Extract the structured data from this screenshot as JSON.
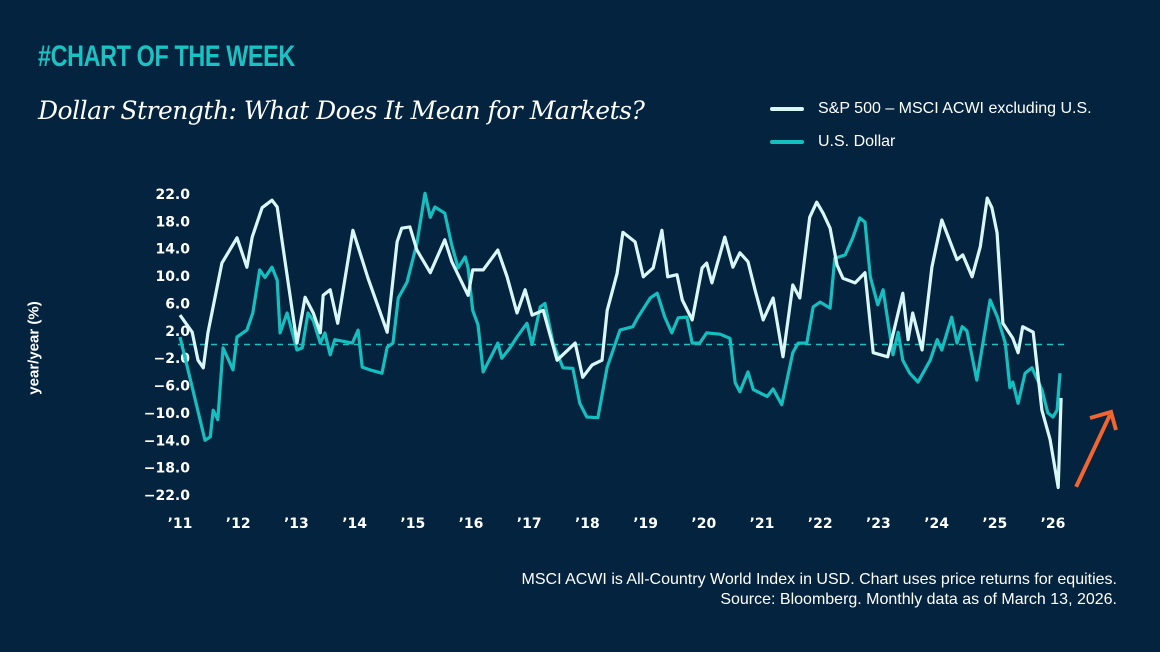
{
  "header": {
    "kicker": "#CHART OF THE WEEK",
    "title": "Dollar Strength: What Does It Mean for Markets?"
  },
  "footnote": {
    "line1": "MSCI ACWI is All-Country World Index in USD. Chart uses price returns for equities.",
    "line2": "Source: Bloomberg. Monthly data as of March 13, 2026."
  },
  "colors": {
    "background": "#03233f",
    "kicker": "#19c3c3",
    "spread_line": "#d9f7f7",
    "dollar_line": "#14bfc0",
    "zero_line": "#19c3c3",
    "arrow": "#f26430"
  },
  "annotation": {
    "icon": "arrow-up-right-icon"
  },
  "chart_data": {
    "type": "line",
    "title": "Dollar Strength: What Does It Mean for Markets?",
    "ylabel": "year/year (%)",
    "xlabel": "",
    "xlim": [
      2011,
      2026.2
    ],
    "ylim": [
      -22,
      22
    ],
    "y_ticks": [
      "22.0",
      "18.0",
      "14.0",
      "10.0",
      "6.0",
      "2.0",
      "−2.0",
      "−6.0",
      "−10.0",
      "−14.0",
      "−18.0",
      "−22.0"
    ],
    "y_tick_values": [
      22,
      18,
      14,
      10,
      6,
      2,
      -2,
      -6,
      -10,
      -14,
      -18,
      -22
    ],
    "x_ticks": [
      "’11",
      "’12",
      "’13",
      "’14",
      "’15",
      "’16",
      "’17",
      "’18",
      "’19",
      "’20",
      "’21",
      "’22",
      "’23",
      "’24",
      "’25",
      "’26"
    ],
    "x_tick_values": [
      2011,
      2012,
      2013,
      2014,
      2015,
      2016,
      2017,
      2018,
      2019,
      2020,
      2021,
      2022,
      2023,
      2024,
      2025,
      2026
    ],
    "reference_line": 0,
    "grid": false,
    "legend_position": "top-right",
    "series": [
      {
        "name": "S&P 500 – MSCI ACWI excluding U.S.",
        "x": [
          2011.0,
          2011.21,
          2011.31,
          2011.4,
          2011.48,
          2011.72,
          2011.98,
          2012.15,
          2012.24,
          2012.41,
          2012.58,
          2012.67,
          2012.8,
          2012.92,
          2013.01,
          2013.15,
          2013.29,
          2013.41,
          2013.46,
          2013.58,
          2013.71,
          2013.97,
          2014.23,
          2014.56,
          2014.73,
          2014.81,
          2014.95,
          2015.07,
          2015.3,
          2015.55,
          2015.67,
          2015.95,
          2016.03,
          2016.21,
          2016.46,
          2016.62,
          2016.79,
          2016.93,
          2017.05,
          2017.24,
          2017.48,
          2017.79,
          2017.92,
          2018.08,
          2018.25,
          2018.34,
          2018.51,
          2018.61,
          2018.82,
          2018.96,
          2019.13,
          2019.28,
          2019.38,
          2019.54,
          2019.63,
          2019.8,
          2019.97,
          2020.05,
          2020.14,
          2020.36,
          2020.5,
          2020.62,
          2020.76,
          2020.88,
          2021.02,
          2021.19,
          2021.36,
          2021.53,
          2021.65,
          2021.82,
          2021.94,
          2022.05,
          2022.17,
          2022.29,
          2022.39,
          2022.6,
          2022.77,
          2022.91,
          2023.16,
          2023.42,
          2023.51,
          2023.59,
          2023.75,
          2023.92,
          2024.09,
          2024.35,
          2024.45,
          2024.61,
          2024.75,
          2024.87,
          2024.95,
          2025.04,
          2025.14,
          2025.31,
          2025.4,
          2025.48,
          2025.66,
          2025.81,
          2025.95,
          2026.09,
          2026.14
        ],
        "values": [
          4.3,
          1.8,
          -2.3,
          -3.4,
          1.7,
          11.9,
          15.6,
          11.3,
          15.7,
          20.0,
          21.1,
          20.1,
          12.4,
          5.5,
          0.2,
          6.9,
          4.6,
          1.7,
          7.2,
          8.0,
          3.1,
          16.7,
          9.7,
          1.8,
          15.0,
          17.0,
          17.2,
          13.8,
          10.5,
          15.3,
          12.1,
          7.2,
          10.9,
          10.9,
          13.8,
          9.9,
          4.6,
          8.0,
          4.3,
          5.0,
          -2.3,
          0.2,
          -4.8,
          -3.0,
          -2.3,
          5.0,
          10.4,
          16.4,
          15.0,
          9.9,
          11.2,
          16.7,
          9.9,
          10.2,
          6.5,
          3.6,
          11.2,
          11.9,
          9.0,
          15.7,
          11.3,
          13.4,
          12.1,
          8.0,
          3.6,
          6.8,
          -1.8,
          8.7,
          6.8,
          18.6,
          20.8,
          19.2,
          17.0,
          11.6,
          9.7,
          9.0,
          10.5,
          -1.2,
          -1.8,
          7.5,
          0.7,
          4.6,
          -0.8,
          11.3,
          18.2,
          12.4,
          13.1,
          9.9,
          14.3,
          21.4,
          20.0,
          16.3,
          3.1,
          0.9,
          -1.2,
          2.6,
          1.8,
          -9.6,
          -13.9,
          -20.9,
          -7.8
        ]
      },
      {
        "name": "U.S. Dollar",
        "x": [
          2011.0,
          2011.22,
          2011.43,
          2011.52,
          2011.57,
          2011.65,
          2011.74,
          2011.91,
          2011.98,
          2012.15,
          2012.25,
          2012.37,
          2012.46,
          2012.58,
          2012.67,
          2012.72,
          2012.84,
          2013.01,
          2013.1,
          2013.2,
          2013.29,
          2013.41,
          2013.49,
          2013.58,
          2013.66,
          2013.96,
          2014.06,
          2014.13,
          2014.26,
          2014.47,
          2014.56,
          2014.66,
          2014.75,
          2014.9,
          2015.07,
          2015.21,
          2015.3,
          2015.38,
          2015.55,
          2015.67,
          2015.78,
          2015.9,
          2015.95,
          2016.03,
          2016.12,
          2016.21,
          2016.38,
          2016.46,
          2016.53,
          2016.67,
          2016.79,
          2016.96,
          2017.05,
          2017.19,
          2017.27,
          2017.41,
          2017.58,
          2017.75,
          2017.87,
          2017.99,
          2018.18,
          2018.34,
          2018.56,
          2018.78,
          2018.87,
          2019.08,
          2019.2,
          2019.33,
          2019.45,
          2019.56,
          2019.71,
          2019.8,
          2019.93,
          2020.05,
          2020.28,
          2020.45,
          2020.54,
          2020.62,
          2020.76,
          2020.85,
          2021.09,
          2021.19,
          2021.34,
          2021.53,
          2021.62,
          2021.77,
          2021.88,
          2022.0,
          2022.17,
          2022.25,
          2022.43,
          2022.56,
          2022.68,
          2022.77,
          2022.86,
          2022.99,
          2023.08,
          2023.25,
          2023.34,
          2023.42,
          2023.54,
          2023.68,
          2023.89,
          2024.01,
          2024.09,
          2024.26,
          2024.35,
          2024.44,
          2024.52,
          2024.69,
          2024.92,
          2025.05,
          2025.18,
          2025.26,
          2025.31,
          2025.4,
          2025.52,
          2025.64,
          2025.81,
          2025.91,
          2026.0,
          2026.07,
          2026.12
        ],
        "values": [
          1.1,
          -6.6,
          -14.0,
          -13.5,
          -9.6,
          -11.0,
          -0.5,
          -3.7,
          1.1,
          2.1,
          4.6,
          10.9,
          9.8,
          11.3,
          9.4,
          1.7,
          4.6,
          -0.8,
          -0.5,
          4.6,
          3.5,
          0.2,
          1.7,
          -1.5,
          0.7,
          0.2,
          2.1,
          -3.3,
          -3.7,
          -4.2,
          -0.4,
          0.2,
          6.8,
          9.1,
          14.8,
          22.1,
          18.6,
          20.1,
          19.2,
          14.5,
          11.2,
          12.8,
          11.2,
          5.0,
          2.9,
          -4.0,
          -1.2,
          0.2,
          -2.0,
          -0.5,
          1.1,
          3.1,
          0.0,
          5.5,
          6.0,
          0.2,
          -3.4,
          -3.5,
          -8.6,
          -10.6,
          -10.7,
          -3.3,
          2.1,
          2.6,
          4.0,
          6.8,
          7.5,
          4.0,
          1.7,
          3.9,
          4.0,
          0.2,
          0.2,
          1.7,
          1.5,
          0.9,
          -5.6,
          -6.9,
          -4.0,
          -6.6,
          -7.6,
          -6.5,
          -8.8,
          -1.2,
          0.2,
          0.2,
          5.5,
          6.2,
          5.3,
          12.6,
          13.1,
          15.6,
          18.5,
          17.9,
          9.9,
          5.8,
          8.0,
          -1.5,
          1.8,
          -2.3,
          -4.2,
          -5.5,
          -2.3,
          0.7,
          -0.8,
          4.0,
          0.2,
          2.6,
          2.0,
          -5.2,
          6.5,
          3.9,
          0.2,
          -6.3,
          -5.5,
          -8.6,
          -4.2,
          -3.4,
          -6.6,
          -10.0,
          -10.6,
          -9.6,
          -4.2
        ]
      }
    ]
  }
}
